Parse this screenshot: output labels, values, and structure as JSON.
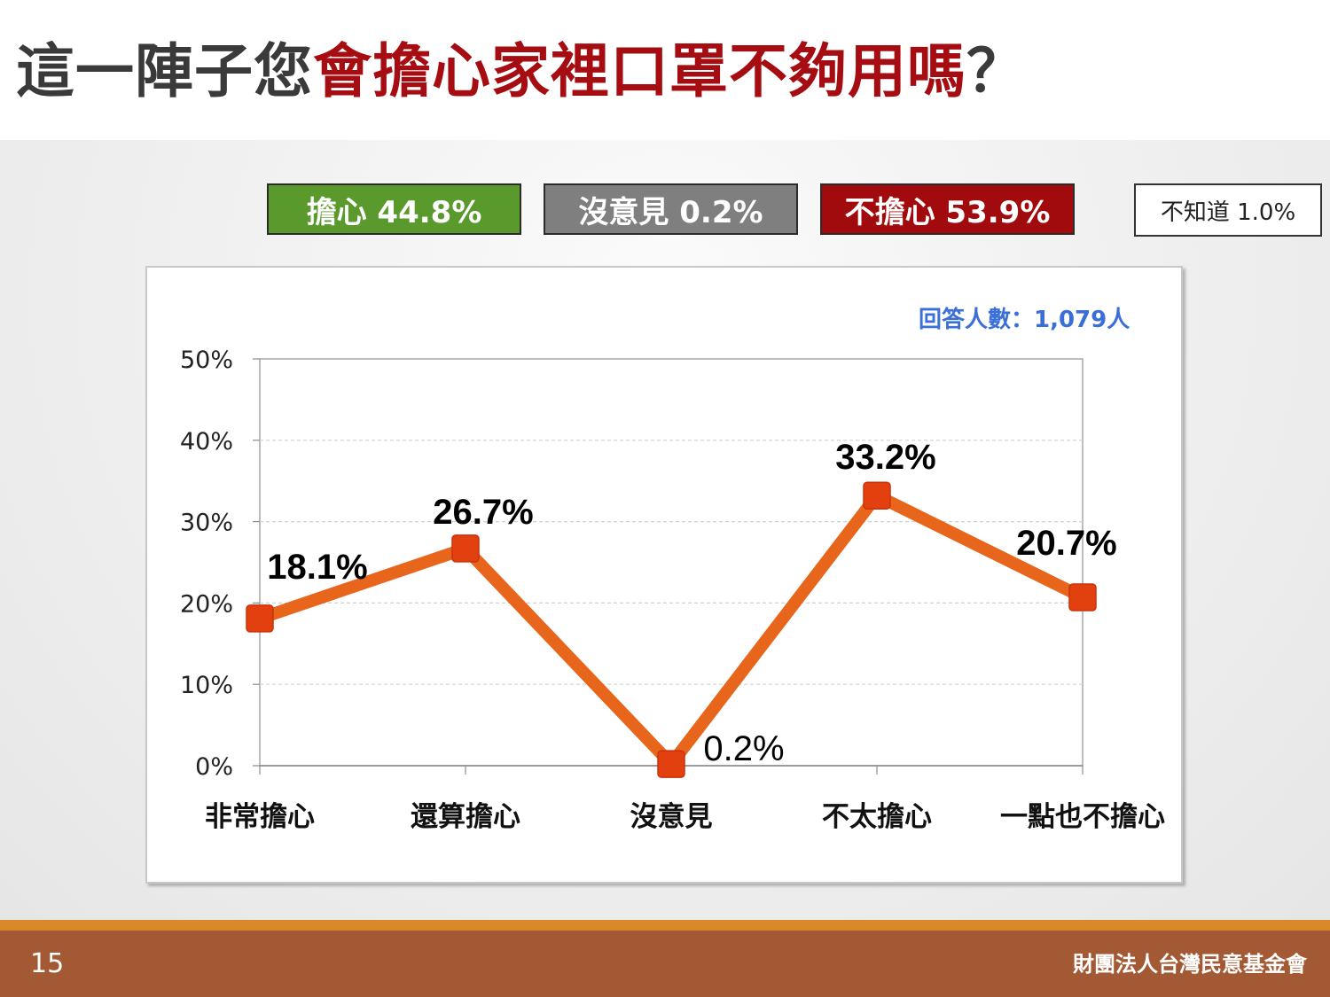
{
  "header": {
    "title_prefix": "這一陣子您",
    "title_accent": "會擔心家裡口罩不夠用嗎",
    "title_suffix": "？"
  },
  "summary": {
    "worried": "擔心 44.8%",
    "no_opinion": "沒意見 0.2%",
    "not_worried": "不擔心 53.9%",
    "dont_know": "不知道 1.0%"
  },
  "respondents": "回答人數：1,079人",
  "footer": {
    "page_number": "15",
    "organization": "財團法人台灣民意基金會"
  },
  "colors": {
    "worried": "#5a9a2c",
    "no_opinion": "#7f7f7f",
    "not_worried": "#a10b0d",
    "line": "#e8661c",
    "marker": "#e2400e",
    "title_accent": "#a50d12"
  },
  "chart_data": {
    "type": "line",
    "title": "",
    "xlabel": "",
    "ylabel": "",
    "categories": [
      "非常擔心",
      "還算擔心",
      "沒意見",
      "不太擔心",
      "一點也不擔心"
    ],
    "values": [
      18.1,
      26.7,
      0.2,
      33.2,
      20.7
    ],
    "data_labels": [
      "18.1%",
      "26.7%",
      "0.2%",
      "33.2%",
      "20.7%"
    ],
    "ylim": [
      0,
      50
    ],
    "yticks": [
      0,
      10,
      20,
      30,
      40,
      50
    ],
    "ytick_labels": [
      "0%",
      "10%",
      "20%",
      "30%",
      "40%",
      "50%"
    ],
    "grid": true,
    "legend": "none"
  }
}
